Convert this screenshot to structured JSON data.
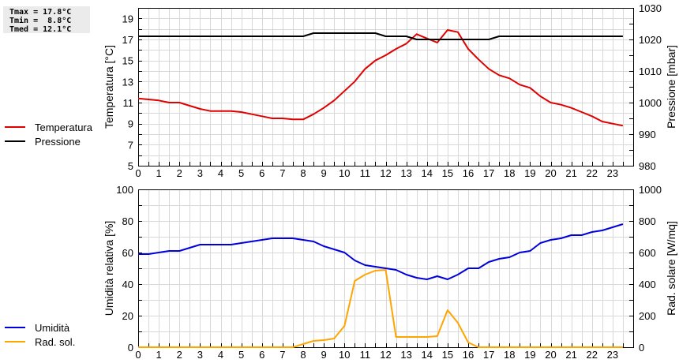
{
  "stats": {
    "tmax": "Tmax = 17.8°C",
    "tmin": "Tmin =  8.8°C",
    "tmed": "Tmed = 12.1°C"
  },
  "legend_top": [
    {
      "label": "Temperatura",
      "color": "#e00000"
    },
    {
      "label": "Pressione",
      "color": "#000000"
    }
  ],
  "legend_bottom": [
    {
      "label": "Umidità",
      "color": "#0000dd"
    },
    {
      "label": "Rad. sol.",
      "color": "#ffa500"
    }
  ],
  "chart_data": [
    {
      "type": "line",
      "title": "",
      "xlabel": "",
      "ylabel": "Temperatura [°C]",
      "y2label": "Pressione [mbar]",
      "x_ticks": [
        0,
        1,
        2,
        3,
        4,
        5,
        6,
        7,
        8,
        9,
        10,
        11,
        12,
        13,
        14,
        15,
        16,
        17,
        18,
        19,
        20,
        21,
        22,
        23
      ],
      "xlim": [
        0,
        24
      ],
      "ylim": [
        5,
        20
      ],
      "y_ticks": [
        5,
        7,
        9,
        11,
        13,
        15,
        17,
        19
      ],
      "y2lim": [
        980,
        1030
      ],
      "y2_ticks": [
        980,
        990,
        1000,
        1010,
        1020,
        1030
      ],
      "grid": true,
      "legend_position": "left",
      "series": [
        {
          "name": "Temperatura",
          "axis": "left",
          "color": "#e00000",
          "x": [
            0,
            0.5,
            1,
            1.5,
            2,
            2.5,
            3,
            3.5,
            4,
            4.5,
            5,
            5.5,
            6,
            6.5,
            7,
            7.5,
            8,
            8.5,
            9,
            9.5,
            10,
            10.5,
            11,
            11.5,
            12,
            12.5,
            13,
            13.5,
            14,
            14.5,
            15,
            15.5,
            16,
            16.5,
            17,
            17.5,
            18,
            18.5,
            19,
            19.5,
            20,
            20.5,
            21,
            21.5,
            22,
            22.5,
            23,
            23.5
          ],
          "values": [
            11.4,
            11.3,
            11.2,
            11.0,
            11.0,
            10.7,
            10.4,
            10.2,
            10.2,
            10.2,
            10.1,
            9.9,
            9.7,
            9.5,
            9.5,
            9.4,
            9.4,
            9.9,
            10.5,
            11.2,
            12.1,
            13.0,
            14.2,
            15.0,
            15.5,
            16.1,
            16.6,
            17.5,
            17.1,
            16.7,
            17.9,
            17.7,
            16.1,
            15.1,
            14.2,
            13.6,
            13.3,
            12.7,
            12.4,
            11.6,
            11.0,
            10.8,
            10.5,
            10.1,
            9.7,
            9.2,
            9.0,
            8.8
          ]
        },
        {
          "name": "Pressione",
          "axis": "right",
          "color": "#000000",
          "x": [
            0,
            8,
            8.5,
            11.5,
            12,
            13,
            13.5,
            17,
            17.5,
            23.5
          ],
          "values": [
            1021,
            1021,
            1022,
            1022,
            1021,
            1021,
            1020,
            1020,
            1021,
            1021
          ]
        }
      ]
    },
    {
      "type": "line",
      "title": "",
      "xlabel": "",
      "ylabel": "Umidità relativa [%]",
      "y2label": "Rad. solare [W/mq]",
      "x_ticks": [
        0,
        1,
        2,
        3,
        4,
        5,
        6,
        7,
        8,
        9,
        10,
        11,
        12,
        13,
        14,
        15,
        16,
        17,
        18,
        19,
        20,
        21,
        22,
        23
      ],
      "xlim": [
        0,
        24
      ],
      "ylim": [
        0,
        100
      ],
      "y_ticks": [
        0,
        20,
        40,
        60,
        80,
        100
      ],
      "y2lim": [
        0,
        1000
      ],
      "y2_ticks": [
        0,
        200,
        400,
        600,
        800,
        1000
      ],
      "grid": true,
      "legend_position": "left",
      "series": [
        {
          "name": "Umidità",
          "axis": "left",
          "color": "#0000dd",
          "x": [
            0,
            0.5,
            1,
            1.5,
            2,
            2.5,
            3,
            3.5,
            4,
            4.5,
            5,
            5.5,
            6,
            6.5,
            7,
            7.5,
            8,
            8.5,
            9,
            9.5,
            10,
            10.5,
            11,
            11.5,
            12,
            12.5,
            13,
            13.5,
            14,
            14.5,
            15,
            15.5,
            16,
            16.5,
            17,
            17.5,
            18,
            18.5,
            19,
            19.5,
            20,
            20.5,
            21,
            21.5,
            22,
            22.5,
            23,
            23.5
          ],
          "values": [
            59,
            59,
            60,
            61,
            61,
            63,
            65,
            65,
            65,
            65,
            66,
            67,
            68,
            69,
            69,
            69,
            68,
            67,
            64,
            62,
            60,
            55,
            52,
            51,
            50,
            49,
            46,
            44,
            43,
            45,
            43,
            46,
            50,
            50,
            54,
            56,
            57,
            60,
            61,
            66,
            68,
            69,
            71,
            71,
            73,
            74,
            76,
            78
          ]
        },
        {
          "name": "Rad. sol.",
          "axis": "right",
          "color": "#ffa500",
          "x": [
            0,
            7.5,
            8,
            8.5,
            9,
            9.5,
            10,
            10.5,
            11,
            11.5,
            12,
            12.5,
            13,
            13.5,
            14,
            14.5,
            15,
            15.5,
            16,
            16.5,
            17,
            23.5
          ],
          "values": [
            0,
            0,
            20,
            40,
            45,
            55,
            135,
            420,
            460,
            485,
            490,
            65,
            65,
            65,
            65,
            70,
            235,
            155,
            30,
            0,
            0,
            0
          ]
        }
      ]
    }
  ]
}
